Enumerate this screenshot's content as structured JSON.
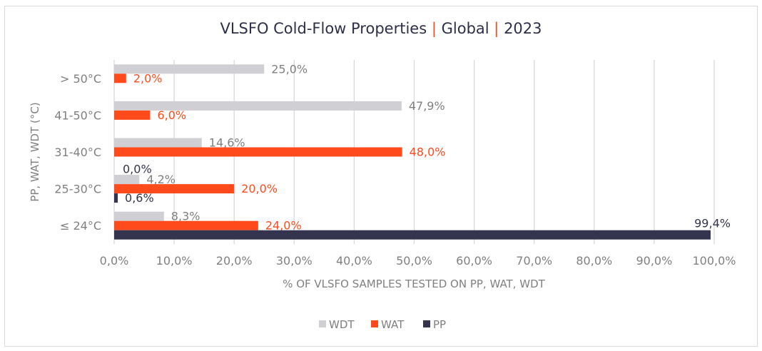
{
  "chart_data": {
    "type": "bar",
    "orientation": "horizontal",
    "title_parts": [
      "VLSFO Cold-Flow Properties",
      "Global",
      "2023"
    ],
    "title_separator": "|",
    "xlabel": "% OF VLSFO SAMPLES TESTED ON PP, WAT, WDT",
    "ylabel": "PP, WAT, WDT (°C)",
    "categories": [
      "≤ 24°C",
      "25-30°C",
      "31-40°C",
      "41-50°C",
      "> 50°C"
    ],
    "xlim": [
      0,
      100
    ],
    "xticks": [
      "0,0%",
      "10,0%",
      "20,0%",
      "30,0%",
      "40,0%",
      "50,0%",
      "60,0%",
      "70,0%",
      "80,0%",
      "90,0%",
      "100,0%"
    ],
    "grid": "vertical",
    "legend_position": "bottom",
    "series": [
      {
        "name": "WDT",
        "color": "#d0cfd3",
        "label_color": "#808080",
        "values": [
          8.3,
          4.2,
          14.6,
          47.9,
          25.0
        ],
        "labels": [
          "8,3%",
          "4,2%",
          "14,6%",
          "47,9%",
          "25,0%"
        ]
      },
      {
        "name": "WAT",
        "color": "#ff4a1c",
        "label_color": "#ff4a1c",
        "values": [
          24.0,
          20.0,
          48.0,
          6.0,
          2.0
        ],
        "labels": [
          "24,0%",
          "20,0%",
          "48,0%",
          "6,0%",
          "2,0%"
        ]
      },
      {
        "name": "PP",
        "color": "#34344e",
        "label_color": "#34344e",
        "values": [
          99.4,
          0.6,
          0.0,
          null,
          null
        ],
        "labels": [
          "99,4%",
          "0,6%",
          "0,0%",
          null,
          null
        ]
      }
    ]
  }
}
